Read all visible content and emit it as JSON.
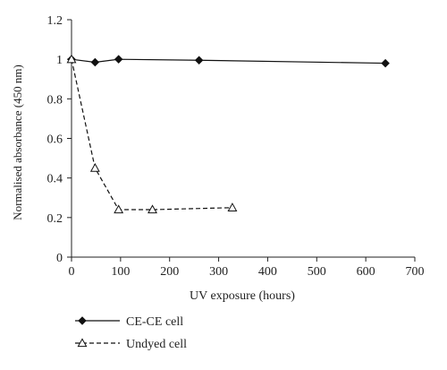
{
  "chart_data": {
    "type": "line",
    "title": "",
    "xlabel": "UV exposure (hours)",
    "ylabel": "Normalised absorbance (450 nm)",
    "xlim": [
      0,
      700
    ],
    "ylim": [
      0,
      1.2
    ],
    "xticks": [
      0,
      100,
      200,
      300,
      400,
      500,
      600,
      700
    ],
    "yticks": [
      0,
      0.2,
      0.4,
      0.6,
      0.8,
      1,
      1.2
    ],
    "xtick_labels": [
      "0",
      "100",
      "200",
      "300",
      "400",
      "500",
      "600",
      "700"
    ],
    "ytick_labels": [
      "0",
      "0.2",
      "0.4",
      "0.6",
      "0.8",
      "1",
      "1.2"
    ],
    "grid": false,
    "legend_position": "bottom-left, below plot",
    "series": [
      {
        "name": "CE-CE cell",
        "marker": "diamond-filled",
        "line_style": "solid",
        "color": "#111111",
        "x": [
          0,
          48,
          96,
          260,
          640
        ],
        "y": [
          1.0,
          0.985,
          1.0,
          0.995,
          0.98
        ]
      },
      {
        "name": "Undyed cell",
        "marker": "triangle-open",
        "line_style": "dashed",
        "color": "#111111",
        "x": [
          0,
          48,
          96,
          165,
          328
        ],
        "y": [
          1.0,
          0.45,
          0.24,
          0.24,
          0.25
        ]
      }
    ]
  }
}
